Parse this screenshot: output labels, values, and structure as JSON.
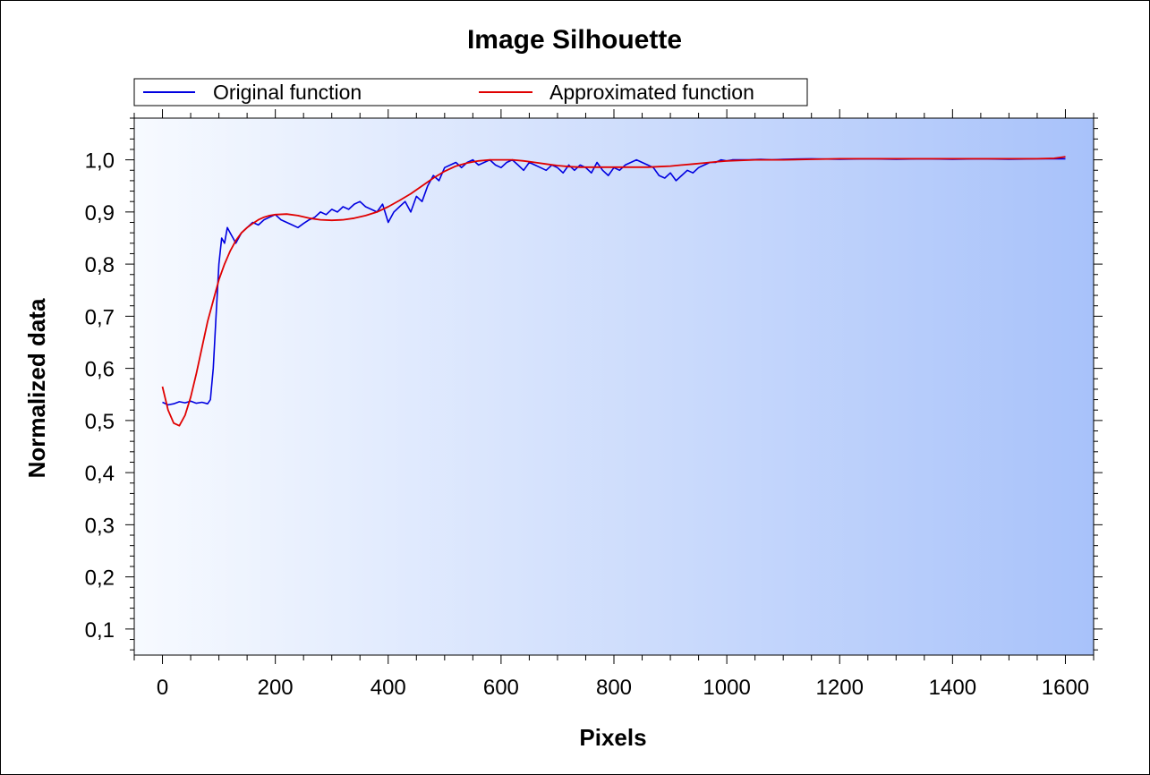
{
  "chart_data": {
    "type": "line",
    "title": "Image Silhouette",
    "xlabel": "Pixels",
    "ylabel": "Normalized data",
    "xlim": [
      -50,
      1650
    ],
    "ylim": [
      0.05,
      1.08
    ],
    "x_ticks": [
      0,
      200,
      400,
      600,
      800,
      1000,
      1200,
      1400,
      1600
    ],
    "y_ticks": [
      0.1,
      0.2,
      0.3,
      0.4,
      0.5,
      0.6,
      0.7,
      0.8,
      0.9,
      1.0
    ],
    "x_tick_labels": [
      "0",
      "200",
      "400",
      "600",
      "800",
      "1000",
      "1200",
      "1400",
      "1600"
    ],
    "y_tick_labels": [
      "0,1",
      "0,2",
      "0,3",
      "0,4",
      "0,5",
      "0,6",
      "0,7",
      "0,8",
      "0,9",
      "1,0"
    ],
    "legend_position": "top",
    "plot_gradient": [
      "#f7faff",
      "#a8c2fa"
    ],
    "series": [
      {
        "name": "Original function",
        "color": "#0000e0",
        "x": [
          0,
          10,
          20,
          30,
          40,
          50,
          60,
          70,
          80,
          85,
          90,
          95,
          100,
          105,
          110,
          115,
          120,
          125,
          130,
          140,
          150,
          160,
          170,
          180,
          190,
          200,
          210,
          220,
          230,
          240,
          250,
          260,
          270,
          280,
          290,
          300,
          310,
          320,
          330,
          340,
          350,
          360,
          370,
          380,
          390,
          400,
          410,
          420,
          430,
          440,
          450,
          460,
          470,
          480,
          490,
          500,
          510,
          520,
          530,
          540,
          550,
          560,
          570,
          580,
          590,
          600,
          610,
          620,
          630,
          640,
          650,
          660,
          670,
          680,
          690,
          700,
          710,
          720,
          730,
          740,
          750,
          760,
          770,
          780,
          790,
          800,
          810,
          820,
          830,
          840,
          850,
          860,
          870,
          880,
          890,
          900,
          910,
          920,
          930,
          940,
          950,
          960,
          970,
          980,
          990,
          1000,
          1010,
          1020,
          1040,
          1060,
          1080,
          1100,
          1150,
          1200,
          1250,
          1300,
          1350,
          1400,
          1450,
          1500,
          1550,
          1600
        ],
        "values": [
          0.535,
          0.53,
          0.532,
          0.536,
          0.534,
          0.537,
          0.533,
          0.535,
          0.532,
          0.54,
          0.6,
          0.7,
          0.8,
          0.85,
          0.84,
          0.87,
          0.86,
          0.85,
          0.84,
          0.86,
          0.87,
          0.88,
          0.875,
          0.885,
          0.89,
          0.895,
          0.885,
          0.88,
          0.875,
          0.87,
          0.878,
          0.885,
          0.89,
          0.9,
          0.895,
          0.905,
          0.9,
          0.91,
          0.905,
          0.915,
          0.92,
          0.91,
          0.905,
          0.9,
          0.915,
          0.88,
          0.9,
          0.91,
          0.92,
          0.9,
          0.93,
          0.92,
          0.95,
          0.97,
          0.96,
          0.985,
          0.99,
          0.995,
          0.985,
          0.995,
          1.0,
          0.99,
          0.995,
          1.0,
          0.99,
          0.985,
          0.995,
          1.0,
          0.99,
          0.98,
          0.995,
          0.99,
          0.985,
          0.98,
          0.99,
          0.985,
          0.975,
          0.99,
          0.98,
          0.99,
          0.985,
          0.975,
          0.995,
          0.98,
          0.97,
          0.985,
          0.98,
          0.99,
          0.995,
          1.0,
          0.995,
          0.99,
          0.985,
          0.97,
          0.965,
          0.975,
          0.96,
          0.97,
          0.98,
          0.975,
          0.985,
          0.99,
          0.995,
          0.995,
          1.0,
          0.998,
          1.0,
          1.0,
          1.0,
          1.001,
          1.0,
          1.001,
          1.002,
          1.001,
          1.002,
          1.001,
          1.002,
          1.001,
          1.002,
          1.001,
          1.002,
          1.002
        ]
      },
      {
        "name": "Approximated function",
        "color": "#e00000",
        "x": [
          0,
          10,
          20,
          30,
          40,
          50,
          60,
          70,
          80,
          90,
          100,
          110,
          120,
          130,
          140,
          150,
          160,
          170,
          180,
          190,
          200,
          220,
          240,
          260,
          280,
          300,
          320,
          340,
          360,
          380,
          400,
          420,
          440,
          460,
          480,
          500,
          520,
          540,
          560,
          580,
          600,
          620,
          640,
          660,
          680,
          700,
          720,
          740,
          760,
          780,
          800,
          820,
          840,
          860,
          880,
          900,
          920,
          940,
          960,
          980,
          1000,
          1050,
          1100,
          1150,
          1200,
          1250,
          1300,
          1350,
          1400,
          1450,
          1500,
          1550,
          1580,
          1600
        ],
        "values": [
          0.565,
          0.52,
          0.495,
          0.49,
          0.51,
          0.545,
          0.59,
          0.64,
          0.69,
          0.73,
          0.77,
          0.8,
          0.825,
          0.845,
          0.86,
          0.87,
          0.878,
          0.885,
          0.89,
          0.893,
          0.895,
          0.896,
          0.893,
          0.888,
          0.885,
          0.884,
          0.885,
          0.888,
          0.893,
          0.9,
          0.91,
          0.922,
          0.935,
          0.95,
          0.965,
          0.978,
          0.988,
          0.994,
          0.998,
          1.0,
          1.0,
          1.0,
          0.998,
          0.995,
          0.992,
          0.989,
          0.987,
          0.986,
          0.986,
          0.986,
          0.986,
          0.986,
          0.986,
          0.986,
          0.987,
          0.988,
          0.99,
          0.992,
          0.994,
          0.996,
          0.998,
          1.0,
          1.0,
          1.001,
          1.002,
          1.002,
          1.002,
          1.002,
          1.002,
          1.002,
          1.002,
          1.002,
          1.003,
          1.006
        ]
      }
    ]
  }
}
